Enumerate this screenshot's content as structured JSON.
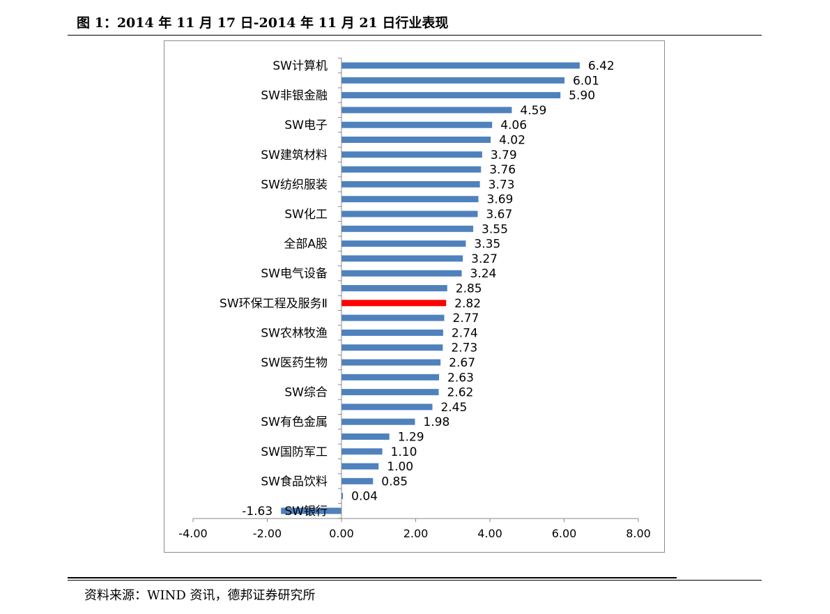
{
  "header": {
    "title": "图 1：2014 年 11 月 17 日-2014 年 11 月 21 日行业表现"
  },
  "footer": {
    "source": "资料来源：WIND 资讯，德邦证券研究所"
  },
  "colors": {
    "bar": "#4F81BD",
    "highlight_bar": "#FF0000"
  },
  "chart_data": {
    "type": "bar",
    "orientation": "horizontal",
    "title": "",
    "xlabel": "",
    "ylabel": "",
    "xlim": [
      -4,
      8
    ],
    "x_ticks": [
      "-4.00",
      "-2.00",
      "0.00",
      "2.00",
      "4.00",
      "6.00",
      "8.00"
    ],
    "grid": false,
    "legend": "none",
    "highlight_index": 16,
    "categories": [
      "SW计算机",
      "",
      "SW非银金融",
      "",
      "SW电子",
      "",
      "SW建筑材料",
      "",
      "SW纺织服装",
      "",
      "SW化工",
      "",
      "全部A股",
      "",
      "SW电气设备",
      "",
      "SW环保工程及服务Ⅱ",
      "",
      "SW农林牧渔",
      "",
      "SW医药生物",
      "",
      "SW综合",
      "",
      "SW有色金属",
      "",
      "SW国防军工",
      "",
      "SW食品饮料",
      "",
      "SW银行"
    ],
    "values": [
      6.42,
      6.01,
      5.9,
      4.59,
      4.06,
      4.02,
      3.79,
      3.76,
      3.73,
      3.69,
      3.67,
      3.55,
      3.35,
      3.27,
      3.24,
      2.85,
      2.82,
      2.77,
      2.74,
      2.73,
      2.67,
      2.63,
      2.62,
      2.45,
      1.98,
      1.29,
      1.1,
      1.0,
      0.85,
      0.04,
      -1.63
    ],
    "value_labels": [
      "6.42",
      "6.01",
      "5.90",
      "4.59",
      "4.06",
      "4.02",
      "3.79",
      "3.76",
      "3.73",
      "3.69",
      "3.67",
      "3.55",
      "3.35",
      "3.27",
      "3.24",
      "2.85",
      "2.82",
      "2.77",
      "2.74",
      "2.73",
      "2.67",
      "2.63",
      "2.62",
      "2.45",
      "1.98",
      "1.29",
      "1.10",
      "1.00",
      "0.85",
      "0.04",
      "-1.63"
    ]
  }
}
